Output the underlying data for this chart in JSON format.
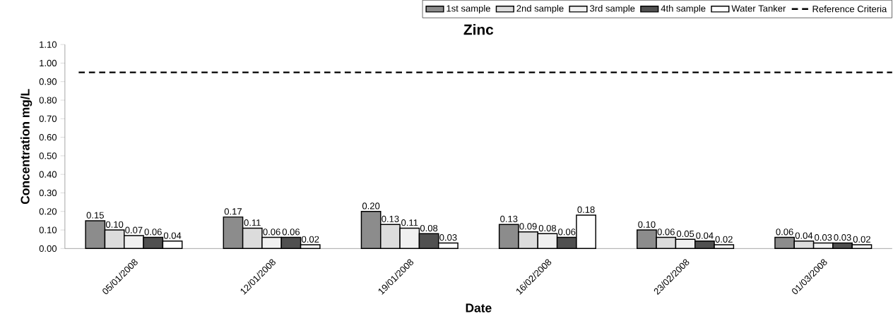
{
  "chart_data": {
    "type": "bar",
    "title": "Zinc",
    "xlabel": "Date",
    "ylabel": "Concentration mg/L",
    "categories": [
      "05/01/2008",
      "12/01/2008",
      "19/01/2008",
      "16/02/2008",
      "23/02/2008",
      "01/03/2008"
    ],
    "series": [
      {
        "name": "1st sample",
        "color": "#8c8c8c",
        "values": [
          0.15,
          0.17,
          0.2,
          0.13,
          0.1,
          0.06
        ],
        "value_labels": [
          "0.15",
          "0.17",
          "0.20",
          "0.13",
          "0.10",
          "0.06"
        ]
      },
      {
        "name": "2nd sample",
        "color": "#dcdcdc",
        "values": [
          0.1,
          0.11,
          0.13,
          0.09,
          0.06,
          0.04
        ],
        "value_labels": [
          "0.10",
          "0.11",
          "0.13",
          "0.09",
          "0.06",
          "0.04"
        ]
      },
      {
        "name": "3rd sample",
        "color": "#f0f0f0",
        "values": [
          0.07,
          0.06,
          0.11,
          0.08,
          0.05,
          0.03
        ],
        "value_labels": [
          "0.07",
          "0.06",
          "0.11",
          "0.08",
          "0.05",
          "0.03"
        ]
      },
      {
        "name": "4th sample",
        "color": "#505050",
        "values": [
          0.06,
          0.06,
          0.08,
          0.06,
          0.04,
          0.03
        ],
        "value_labels": [
          "0.06",
          "0.06",
          "0.08",
          "0.06",
          "0.04",
          "0.03"
        ]
      },
      {
        "name": "Water Tanker",
        "color": "#ffffff",
        "values": [
          0.04,
          0.02,
          0.03,
          0.18,
          0.02,
          0.02
        ],
        "value_labels": [
          "0.04",
          "0.02",
          "0.03",
          "0.18",
          "0.02",
          "0.02"
        ]
      }
    ],
    "ylim": [
      0,
      1.1
    ],
    "yticks": [
      {
        "value": 0,
        "label": "0.00"
      },
      {
        "value": 0.1,
        "label": "0.10"
      },
      {
        "value": 0.2,
        "label": "0.20"
      },
      {
        "value": 0.3,
        "label": "0.30"
      },
      {
        "value": 0.4,
        "label": "0.40"
      },
      {
        "value": 0.5,
        "label": "0.50"
      },
      {
        "value": 0.6,
        "label": "0.60"
      },
      {
        "value": 0.7,
        "label": "0.70"
      },
      {
        "value": 0.8,
        "label": "0.80"
      },
      {
        "value": 0.9,
        "label": "0.90"
      },
      {
        "value": 1.0,
        "label": "1.00"
      },
      {
        "value": 1.1,
        "label": "1.10"
      }
    ],
    "ref_lines": [
      {
        "axis": "y",
        "value": 0.95,
        "label": "Reference Criteria",
        "color": "#000000",
        "line_style": "dashed"
      }
    ],
    "legend": "top right",
    "grid": false
  }
}
